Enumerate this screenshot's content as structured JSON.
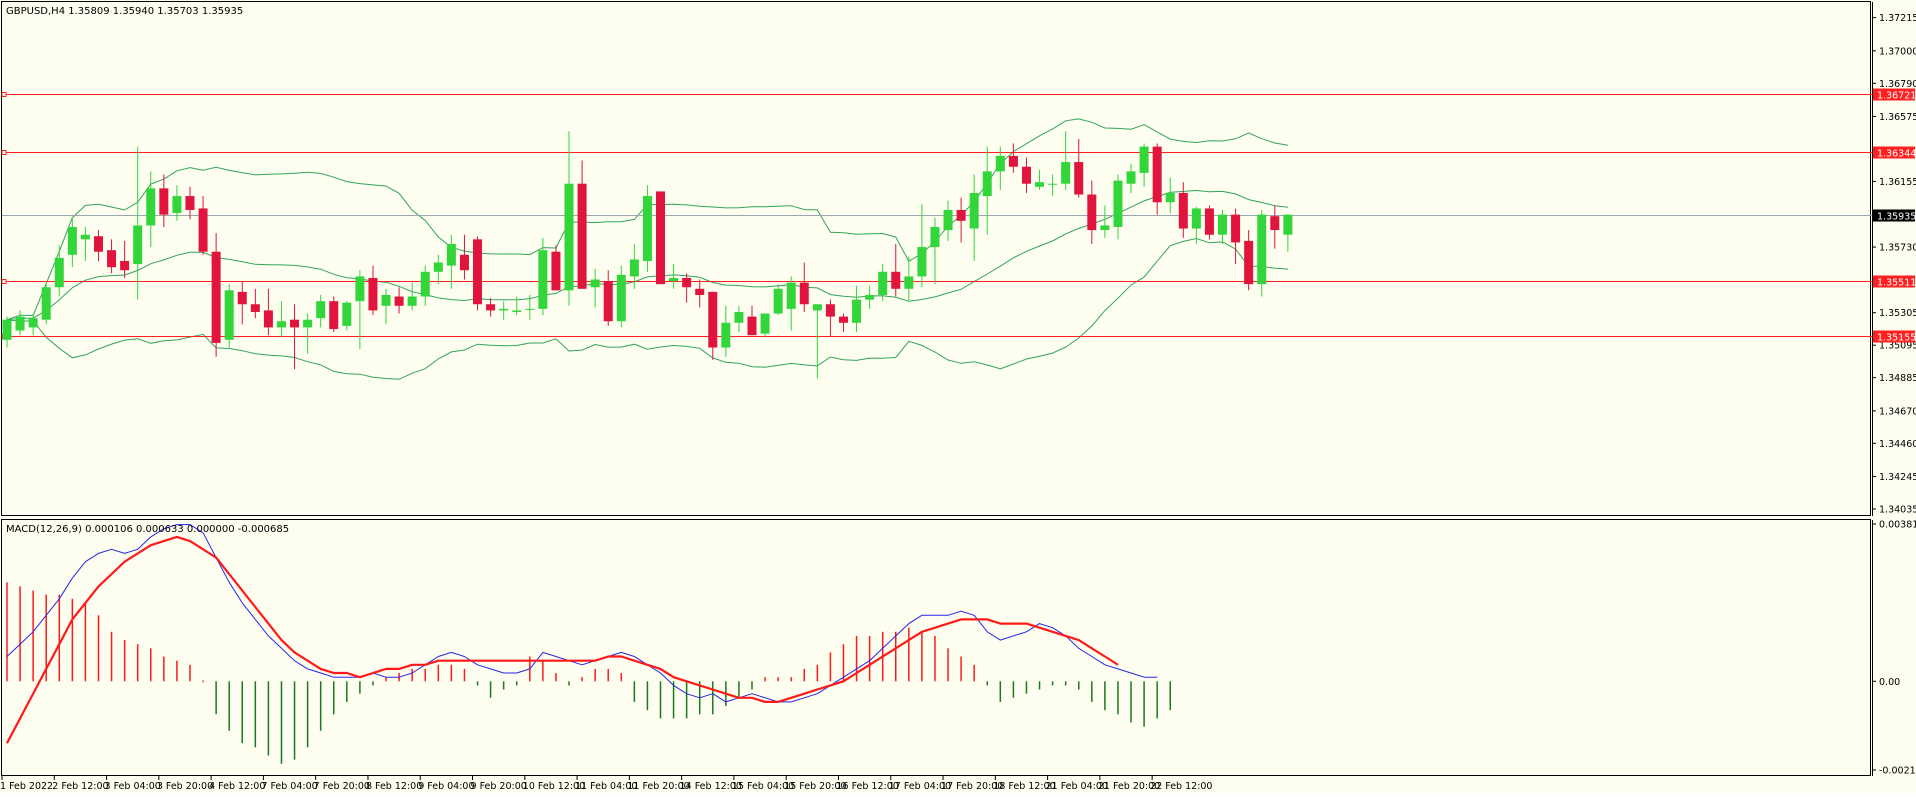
{
  "header": {
    "symbol_line": "GBPUSD,H4  1.35809 1.35940 1.35703 1.35935",
    "macd_line": "MACD(12,26,9) 0.000106 0.000633 0.000000 -0.000685"
  },
  "colors": {
    "background": "#fdfdf0",
    "bull": "#33d63a",
    "bear": "#e0143c",
    "band": "#33a45a",
    "hline": "#ff2020",
    "price_line": "#9aa7b0",
    "macd_main": "#2626e6",
    "macd_signal": "#ff1a1a",
    "hist_pos": "#ff1a1a",
    "hist_neg": "#1a7a1a"
  },
  "price_axis": {
    "ticks": [
      "1.37215",
      "1.37000",
      "1.36790",
      "1.36575",
      "1.36155",
      "1.35730",
      "1.35305",
      "1.35095",
      "1.34885",
      "1.34670",
      "1.34460",
      "1.34245",
      "1.34035"
    ],
    "tick_values": [
      1.37215,
      1.37,
      1.3679,
      1.36575,
      1.36155,
      1.3573,
      1.35305,
      1.35095,
      1.34885,
      1.3467,
      1.3446,
      1.34245,
      1.34035
    ],
    "range": [
      1.34035,
      1.3729
    ]
  },
  "levels": [
    {
      "label": "1.36721",
      "value": 1.36721
    },
    {
      "label": "1.36344",
      "value": 1.36344
    },
    {
      "label": "1.35511",
      "value": 1.35511
    },
    {
      "label": "1.35155",
      "value": 1.35155
    }
  ],
  "current_price": {
    "label": "1.35935",
    "value": 1.35935
  },
  "time_axis": {
    "labels": [
      {
        "text": "1 Feb 2022",
        "index": 0
      },
      {
        "text": "2 Feb 12:00",
        "index": 4
      },
      {
        "text": "3 Feb 04:00",
        "index": 8
      },
      {
        "text": "3 Feb 20:00",
        "index": 12
      },
      {
        "text": "4 Feb 12:00",
        "index": 16
      },
      {
        "text": "7 Feb 04:00",
        "index": 20
      },
      {
        "text": "7 Feb 20:00",
        "index": 24
      },
      {
        "text": "8 Feb 12:00",
        "index": 28
      },
      {
        "text": "9 Feb 04:00",
        "index": 32
      },
      {
        "text": "9 Feb 20:00",
        "index": 36
      },
      {
        "text": "10 Feb 12:00",
        "index": 40
      },
      {
        "text": "11 Feb 04:00",
        "index": 44
      },
      {
        "text": "11 Feb 20:00",
        "index": 48
      },
      {
        "text": "14 Feb 12:00",
        "index": 52
      },
      {
        "text": "15 Feb 04:00",
        "index": 56
      },
      {
        "text": "15 Feb 20:00",
        "index": 60
      },
      {
        "text": "16 Feb 12:00",
        "index": 64
      },
      {
        "text": "17 Feb 04:00",
        "index": 68
      },
      {
        "text": "17 Feb 20:00",
        "index": 72
      },
      {
        "text": "18 Feb 12:00",
        "index": 76
      },
      {
        "text": "21 Feb 04:00",
        "index": 80
      },
      {
        "text": "21 Feb 20:00",
        "index": 84
      },
      {
        "text": "22 Feb 12:00",
        "index": 88
      }
    ]
  },
  "macd_axis": {
    "ticks": [
      "0.003814",
      "0.00",
      "-0.002151"
    ],
    "tick_values": [
      0.003814,
      0.0,
      -0.002151
    ],
    "range": [
      -0.002151,
      0.003814
    ]
  },
  "chart_data": [
    {
      "type": "candlestick",
      "title": "GBPUSD,H4",
      "ylim": [
        1.34035,
        1.3729
      ],
      "candles": [
        [
          1.3513,
          1.3528,
          1.3508,
          1.3526
        ],
        [
          1.3519,
          1.3532,
          1.3516,
          1.3528
        ],
        [
          1.3521,
          1.353,
          1.3516,
          1.3527
        ],
        [
          1.3526,
          1.355,
          1.3523,
          1.3547
        ],
        [
          1.3547,
          1.3574,
          1.3541,
          1.3566
        ],
        [
          1.3568,
          1.3592,
          1.356,
          1.3586
        ],
        [
          1.3578,
          1.3586,
          1.3564,
          1.3581
        ],
        [
          1.358,
          1.3584,
          1.3564,
          1.357
        ],
        [
          1.3571,
          1.3578,
          1.3556,
          1.356
        ],
        [
          1.3564,
          1.3577,
          1.3553,
          1.3558
        ],
        [
          1.3562,
          1.3638,
          1.3539,
          1.3587
        ],
        [
          1.3587,
          1.3622,
          1.3573,
          1.3611
        ],
        [
          1.3611,
          1.362,
          1.3586,
          1.3594
        ],
        [
          1.3595,
          1.3613,
          1.359,
          1.3606
        ],
        [
          1.3606,
          1.3612,
          1.3591,
          1.3597
        ],
        [
          1.3598,
          1.3606,
          1.3568,
          1.357
        ],
        [
          1.357,
          1.3582,
          1.3502,
          1.3511
        ],
        [
          1.3513,
          1.3549,
          1.3508,
          1.3545
        ],
        [
          1.3544,
          1.3551,
          1.3523,
          1.3536
        ],
        [
          1.3536,
          1.3546,
          1.3527,
          1.3531
        ],
        [
          1.3532,
          1.3546,
          1.3516,
          1.3521
        ],
        [
          1.3521,
          1.3538,
          1.3515,
          1.3525
        ],
        [
          1.3526,
          1.3536,
          1.3494,
          1.3521
        ],
        [
          1.3521,
          1.353,
          1.3504,
          1.3526
        ],
        [
          1.3527,
          1.3542,
          1.3521,
          1.3538
        ],
        [
          1.3538,
          1.3541,
          1.3518,
          1.352
        ],
        [
          1.3522,
          1.3538,
          1.3519,
          1.3537
        ],
        [
          1.3538,
          1.3558,
          1.3507,
          1.3554
        ],
        [
          1.3553,
          1.3561,
          1.3529,
          1.3532
        ],
        [
          1.3535,
          1.3546,
          1.3523,
          1.3542
        ],
        [
          1.3541,
          1.3547,
          1.353,
          1.3535
        ],
        [
          1.3535,
          1.355,
          1.3532,
          1.3541
        ],
        [
          1.3541,
          1.3561,
          1.3535,
          1.3557
        ],
        [
          1.3557,
          1.3568,
          1.3549,
          1.3563
        ],
        [
          1.3561,
          1.3581,
          1.3546,
          1.3575
        ],
        [
          1.3568,
          1.3581,
          1.3552,
          1.3558
        ],
        [
          1.3578,
          1.358,
          1.3532,
          1.3536
        ],
        [
          1.3536,
          1.354,
          1.3528,
          1.3532
        ],
        [
          1.3532,
          1.3538,
          1.3526,
          1.3533
        ],
        [
          1.3531,
          1.3541,
          1.3529,
          1.3532
        ],
        [
          1.3533,
          1.3542,
          1.3526,
          1.3533
        ],
        [
          1.3533,
          1.3579,
          1.3529,
          1.3571
        ],
        [
          1.357,
          1.3574,
          1.3545,
          1.3545
        ],
        [
          1.3545,
          1.3648,
          1.3535,
          1.3614
        ],
        [
          1.3614,
          1.3629,
          1.3546,
          1.3546
        ],
        [
          1.3547,
          1.3559,
          1.3534,
          1.3552
        ],
        [
          1.3551,
          1.3558,
          1.3522,
          1.3525
        ],
        [
          1.3525,
          1.3561,
          1.3521,
          1.3555
        ],
        [
          1.3554,
          1.3575,
          1.3546,
          1.3565
        ],
        [
          1.3564,
          1.3613,
          1.3557,
          1.3606
        ],
        [
          1.3609,
          1.3609,
          1.3549,
          1.3549
        ],
        [
          1.3551,
          1.3562,
          1.3546,
          1.3553
        ],
        [
          1.3553,
          1.3556,
          1.3537,
          1.3547
        ],
        [
          1.3546,
          1.3552,
          1.3534,
          1.3542
        ],
        [
          1.3544,
          1.3544,
          1.35,
          1.3508
        ],
        [
          1.3508,
          1.3535,
          1.3502,
          1.3524
        ],
        [
          1.3524,
          1.3535,
          1.3518,
          1.3531
        ],
        [
          1.3528,
          1.3535,
          1.3516,
          1.3516
        ],
        [
          1.3517,
          1.3528,
          1.3515,
          1.353
        ],
        [
          1.353,
          1.3549,
          1.3529,
          1.3546
        ],
        [
          1.3533,
          1.3554,
          1.3519,
          1.355
        ],
        [
          1.355,
          1.3563,
          1.3531,
          1.3536
        ],
        [
          1.3532,
          1.3535,
          1.3488,
          1.3536
        ],
        [
          1.3536,
          1.3539,
          1.3515,
          1.3528
        ],
        [
          1.3528,
          1.353,
          1.3518,
          1.3524
        ],
        [
          1.3524,
          1.3548,
          1.3518,
          1.3539
        ],
        [
          1.3539,
          1.3548,
          1.3533,
          1.3542
        ],
        [
          1.3542,
          1.3562,
          1.3538,
          1.3557
        ],
        [
          1.3557,
          1.3575,
          1.3541,
          1.3546
        ],
        [
          1.3546,
          1.3567,
          1.3538,
          1.3554
        ],
        [
          1.3554,
          1.3601,
          1.3547,
          1.3573
        ],
        [
          1.3573,
          1.3592,
          1.3549,
          1.3586
        ],
        [
          1.3584,
          1.3603,
          1.3577,
          1.3597
        ],
        [
          1.3597,
          1.3605,
          1.3576,
          1.359
        ],
        [
          1.3585,
          1.362,
          1.3564,
          1.3608
        ],
        [
          1.3606,
          1.3638,
          1.3581,
          1.3622
        ],
        [
          1.3622,
          1.3638,
          1.361,
          1.3632
        ],
        [
          1.3632,
          1.364,
          1.3621,
          1.3625
        ],
        [
          1.3625,
          1.3631,
          1.3608,
          1.3614
        ],
        [
          1.3612,
          1.3623,
          1.361,
          1.3615
        ],
        [
          1.3614,
          1.362,
          1.3606,
          1.3614
        ],
        [
          1.3614,
          1.3648,
          1.361,
          1.3628
        ],
        [
          1.3628,
          1.3643,
          1.3605,
          1.3607
        ],
        [
          1.3607,
          1.3616,
          1.3575,
          1.3584
        ],
        [
          1.3584,
          1.36,
          1.3579,
          1.3587
        ],
        [
          1.3586,
          1.362,
          1.3578,
          1.3616
        ],
        [
          1.3614,
          1.3627,
          1.3608,
          1.3622
        ],
        [
          1.3621,
          1.364,
          1.3612,
          1.3638
        ],
        [
          1.3638,
          1.364,
          1.3594,
          1.3602
        ],
        [
          1.3602,
          1.3618,
          1.3595,
          1.3608
        ],
        [
          1.3608,
          1.3615,
          1.3579,
          1.3585
        ],
        [
          1.3585,
          1.3599,
          1.3575,
          1.3598
        ],
        [
          1.3598,
          1.36,
          1.3578,
          1.3581
        ],
        [
          1.3581,
          1.3597,
          1.3575,
          1.3594
        ],
        [
          1.3594,
          1.3598,
          1.3562,
          1.3576
        ],
        [
          1.3577,
          1.3584,
          1.3545,
          1.3549
        ],
        [
          1.3549,
          1.3597,
          1.3541,
          1.3594
        ],
        [
          1.3593,
          1.36,
          1.3572,
          1.3584
        ],
        [
          1.3581,
          1.3594,
          1.357,
          1.3594
        ]
      ]
    },
    {
      "type": "line",
      "title": "MACD(12,26,9)",
      "ylim": [
        -0.002151,
        0.003814
      ],
      "series": [
        {
          "values": [
            0.0006,
            0.0009,
            0.0012,
            0.0016,
            0.002,
            0.0025,
            0.0029,
            0.0031,
            0.0032,
            0.0031,
            0.0032,
            0.0035,
            0.0037,
            0.0038,
            0.0038,
            0.0036,
            0.003,
            0.0024,
            0.0019,
            0.0015,
            0.0011,
            0.0008,
            0.0005,
            0.0003,
            0.0002,
            0.0001,
            0.0001,
            0.0001,
            0.0002,
            0.0001,
            0.0001,
            0.0002,
            0.0004,
            0.0006,
            0.0007,
            0.0006,
            0.0004,
            0.0003,
            0.0002,
            0.0002,
            0.0003,
            0.0007,
            0.0006,
            0.0005,
            0.0004,
            0.0005,
            0.0006,
            0.0007,
            0.0006,
            0.0004,
            0.0002,
            -0.0001,
            -0.0003,
            -0.0004,
            -0.0003,
            -0.0005,
            -0.0004,
            -0.0003,
            -0.0004,
            -0.0005,
            -0.0005,
            -0.0004,
            -0.0003,
            -0.0001,
            0.0001,
            0.0003,
            0.0005,
            0.0008,
            0.0011,
            0.0014,
            0.0016,
            0.0016,
            0.0016,
            0.0017,
            0.0016,
            0.0012,
            0.001,
            0.0011,
            0.0012,
            0.0014,
            0.0013,
            0.0011,
            0.0008,
            0.0006,
            0.0004,
            0.0003,
            0.0002,
            0.0001,
            0.0001
          ]
        },
        {
          "values": [
            -0.0015,
            -0.0009,
            -0.0003,
            0.0003,
            0.0009,
            0.0015,
            0.0019,
            0.0023,
            0.0026,
            0.0029,
            0.0031,
            0.0033,
            0.0034,
            0.0035,
            0.0034,
            0.0032,
            0.003,
            0.0026,
            0.0022,
            0.0018,
            0.0014,
            0.001,
            0.0007,
            0.0005,
            0.0003,
            0.0002,
            0.0002,
            0.0001,
            0.0002,
            0.0003,
            0.0003,
            0.0004,
            0.0004,
            0.0005,
            0.0005,
            0.0005,
            0.0005,
            0.0005,
            0.0005,
            0.0005,
            0.0005,
            0.0005,
            0.0005,
            0.0005,
            0.0005,
            0.0005,
            0.0006,
            0.0006,
            0.0005,
            0.0004,
            0.0003,
            0.0001,
            0.0,
            -0.0001,
            -0.0002,
            -0.0003,
            -0.0004,
            -0.0004,
            -0.0005,
            -0.0005,
            -0.0004,
            -0.0003,
            -0.0002,
            -0.0001,
            0.0,
            0.0002,
            0.0004,
            0.0006,
            0.0008,
            0.001,
            0.0012,
            0.0013,
            0.0014,
            0.0015,
            0.0015,
            0.0015,
            0.0014,
            0.0014,
            0.0014,
            0.0013,
            0.0012,
            0.0011,
            0.001,
            0.0008,
            0.0006,
            0.0004
          ]
        }
      ],
      "histogram": [
        0.0024,
        0.0023,
        0.0022,
        0.0021,
        0.0021,
        0.002,
        0.0019,
        0.0016,
        0.0012,
        0.001,
        0.0009,
        0.0008,
        0.0006,
        0.0005,
        0.0004,
        0.0,
        -0.0008,
        -0.0012,
        -0.0015,
        -0.0016,
        -0.0018,
        -0.002,
        -0.0019,
        -0.0016,
        -0.0012,
        -0.0008,
        -0.0005,
        -0.0003,
        -0.0001,
        0.0001,
        0.0002,
        0.0003,
        0.0003,
        0.0004,
        0.0004,
        0.0003,
        -0.0001,
        -0.0004,
        -0.0002,
        -0.0001,
        0.0006,
        0.0005,
        0.0002,
        -0.0001,
        0.0001,
        0.0003,
        0.0003,
        0.0002,
        -0.0005,
        -0.0007,
        -0.0009,
        -0.0009,
        -0.0009,
        -0.0008,
        -0.0008,
        -0.0006,
        -0.0004,
        -0.0002,
        0.0001,
        0.0001,
        0.0001,
        0.0003,
        0.0004,
        0.0007,
        0.0009,
        0.0011,
        0.0011,
        0.0012,
        0.0012,
        0.0013,
        0.0012,
        0.0011,
        0.0008,
        0.0006,
        0.0004,
        -0.0001,
        -0.0005,
        -0.0004,
        -0.0003,
        -0.0002,
        -0.0001,
        -0.0001,
        -0.0002,
        -0.0005,
        -0.0007,
        -0.0008,
        -0.001,
        -0.0011,
        -0.0009,
        -0.0007
      ]
    }
  ]
}
